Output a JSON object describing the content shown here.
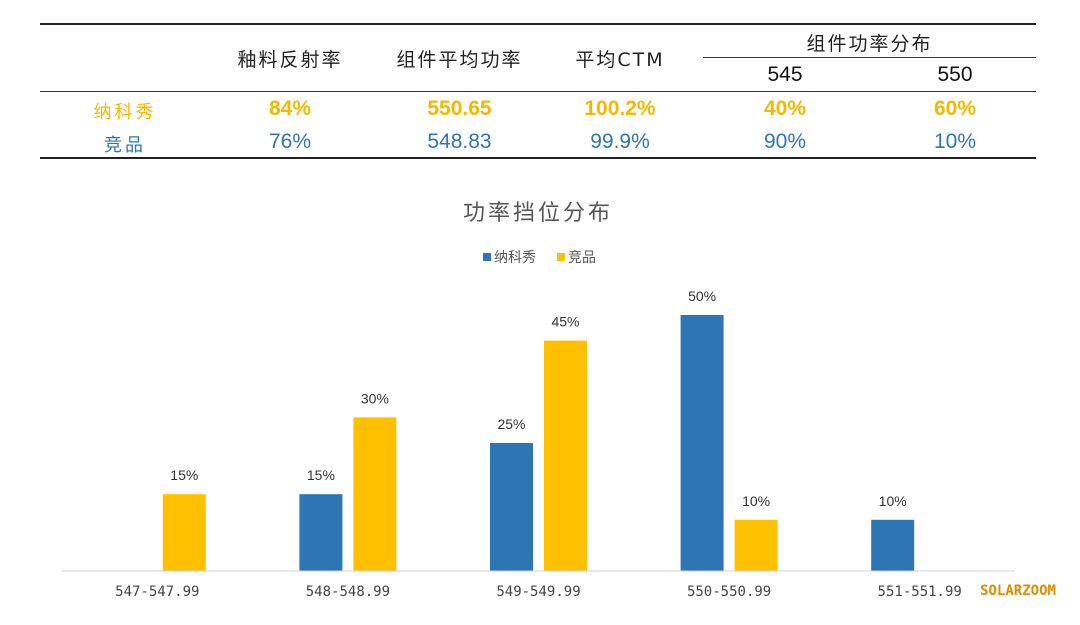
{
  "table": {
    "headers": [
      "釉料反射率",
      "组件平均功率",
      "平均CTM",
      "组件功率分布"
    ],
    "sub_headers": [
      "545",
      "550"
    ],
    "rows": [
      {
        "label": "纳科秀",
        "values": [
          "84%",
          "550.65",
          "100.2%",
          "40%",
          "60%"
        ],
        "color": "#f5b800"
      },
      {
        "label": "竞品",
        "values": [
          "76%",
          "548.83",
          "99.9%",
          "90%",
          "10%"
        ],
        "color": "#2e75b6"
      }
    ]
  },
  "chart_data": {
    "type": "bar",
    "title": "功率挡位分布",
    "categories": [
      "547-547.99",
      "548-548.99",
      "549-549.99",
      "550-550.99",
      "551-551.99"
    ],
    "series": [
      {
        "name": "纳科秀",
        "color": "#2e75b6",
        "values": [
          0,
          15,
          25,
          50,
          10
        ],
        "labels": [
          "",
          "15%",
          "25%",
          "50%",
          "10%"
        ]
      },
      {
        "name": "竞品",
        "color": "#ffc000",
        "values": [
          15,
          30,
          45,
          10,
          0
        ],
        "labels": [
          "15%",
          "30%",
          "45%",
          "10%",
          ""
        ]
      }
    ],
    "ylim": [
      0,
      50
    ],
    "legend": "top-center",
    "grid": false
  },
  "watermark": "SOLARZOOM"
}
